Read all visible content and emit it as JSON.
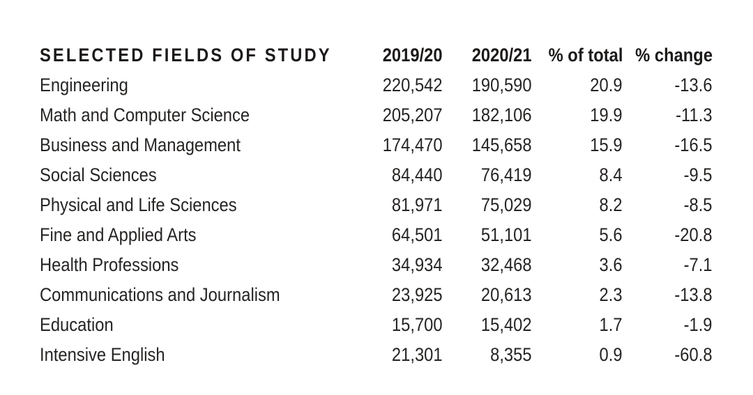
{
  "colors": {
    "background": "#ffffff",
    "body_text": "#262423",
    "header_text": "#1c1a19"
  },
  "table": {
    "columns": [
      {
        "key": "field",
        "label": "SELECTED FIELDS OF STUDY"
      },
      {
        "key": "y2019_20",
        "label": "2019/20"
      },
      {
        "key": "y2020_21",
        "label": "2020/21"
      },
      {
        "key": "pct_total",
        "label": "% of total"
      },
      {
        "key": "pct_change",
        "label": "% change"
      }
    ],
    "rows": [
      {
        "field": "Engineering",
        "y2019_20": "220,542",
        "y2020_21": "190,590",
        "pct_total": "20.9",
        "pct_change": "-13.6"
      },
      {
        "field": "Math and Computer Science",
        "y2019_20": "205,207",
        "y2020_21": "182,106",
        "pct_total": "19.9",
        "pct_change": "-11.3"
      },
      {
        "field": "Business and Management",
        "y2019_20": "174,470",
        "y2020_21": "145,658",
        "pct_total": "15.9",
        "pct_change": "-16.5"
      },
      {
        "field": "Social Sciences",
        "y2019_20": "84,440",
        "y2020_21": "76,419",
        "pct_total": "8.4",
        "pct_change": "-9.5"
      },
      {
        "field": "Physical and Life Sciences",
        "y2019_20": "81,971",
        "y2020_21": "75,029",
        "pct_total": "8.2",
        "pct_change": "-8.5"
      },
      {
        "field": "Fine and Applied Arts",
        "y2019_20": "64,501",
        "y2020_21": "51,101",
        "pct_total": "5.6",
        "pct_change": "-20.8"
      },
      {
        "field": "Health Professions",
        "y2019_20": "34,934",
        "y2020_21": "32,468",
        "pct_total": "3.6",
        "pct_change": "-7.1"
      },
      {
        "field": "Communications and Journalism",
        "y2019_20": "23,925",
        "y2020_21": "20,613",
        "pct_total": "2.3",
        "pct_change": "-13.8"
      },
      {
        "field": "Education",
        "y2019_20": "15,700",
        "y2020_21": "15,402",
        "pct_total": "1.7",
        "pct_change": "-1.9"
      },
      {
        "field": "Intensive English",
        "y2019_20": "21,301",
        "y2020_21": "8,355",
        "pct_total": "0.9",
        "pct_change": "-60.8"
      }
    ]
  },
  "chart_data": {
    "type": "table",
    "title": "SELECTED FIELDS OF STUDY",
    "columns": [
      "SELECTED FIELDS OF STUDY",
      "2019/20",
      "2020/21",
      "% of total",
      "% change"
    ],
    "categories": [
      "Engineering",
      "Math and Computer Science",
      "Business and Management",
      "Social Sciences",
      "Physical and Life Sciences",
      "Fine and Applied Arts",
      "Health Professions",
      "Communications and Journalism",
      "Education",
      "Intensive English"
    ],
    "series": [
      {
        "name": "2019/20",
        "values": [
          220542,
          205207,
          174470,
          84440,
          81971,
          64501,
          34934,
          23925,
          15700,
          21301
        ]
      },
      {
        "name": "2020/21",
        "values": [
          190590,
          182106,
          145658,
          76419,
          75029,
          51101,
          32468,
          20613,
          15402,
          8355
        ]
      },
      {
        "name": "% of total",
        "values": [
          20.9,
          19.9,
          15.9,
          8.4,
          8.2,
          5.6,
          3.6,
          2.3,
          1.7,
          0.9
        ]
      },
      {
        "name": "% change",
        "values": [
          -13.6,
          -11.3,
          -16.5,
          -9.5,
          -8.5,
          -20.8,
          -7.1,
          -13.8,
          -1.9,
          -60.8
        ]
      }
    ]
  }
}
